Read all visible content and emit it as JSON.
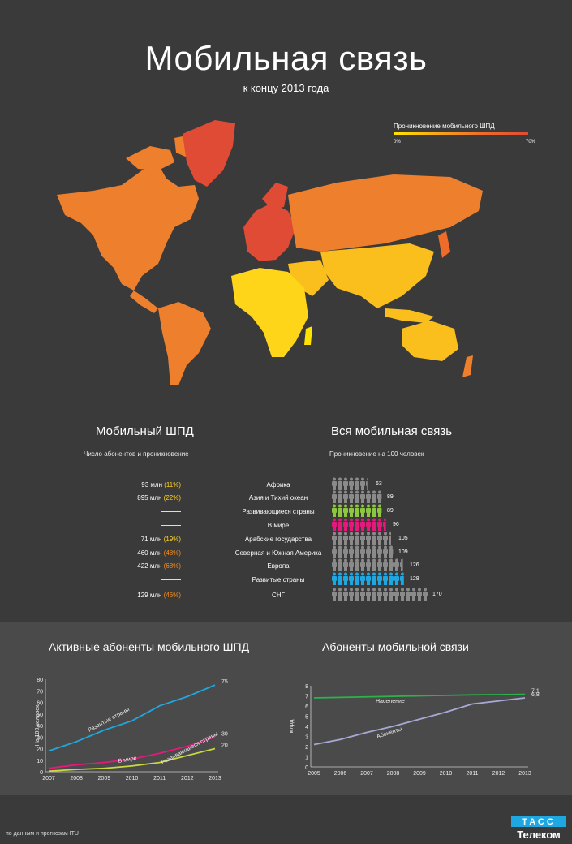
{
  "header": {
    "title": "Мобильная связь",
    "subtitle": "к концу 2013 года"
  },
  "map_legend": {
    "title": "Проникновение мобильного ШПД",
    "min": "0%",
    "max": "70%",
    "colors": [
      "#ffe400",
      "#f5a51b",
      "#ee6b2a",
      "#e04b35"
    ]
  },
  "left_section": {
    "title": "Мобильный ШПД",
    "subtitle": "Число абонентов и проникновение"
  },
  "right_section": {
    "title": "Вся мобильная связь",
    "subtitle": "Проникновение на 100 человек"
  },
  "rows": [
    {
      "abs": "93 млн",
      "pct": "(11%)",
      "pct_class": "pct-y",
      "region": "Африка",
      "value": 63,
      "color": "#8a8a8a"
    },
    {
      "abs": "895 млн",
      "pct": "(22%)",
      "pct_class": "pct-y",
      "region": "Азия и Тихий океан",
      "value": 89,
      "color": "#8a8a8a"
    },
    {
      "abs": "",
      "pct": "",
      "pct_class": "",
      "region": "Развивающиеся страны",
      "value": 89,
      "color": "#8dc63f"
    },
    {
      "abs": "",
      "pct": "",
      "pct_class": "",
      "region": "В мире",
      "value": 96,
      "color": "#e5197c"
    },
    {
      "abs": "71 млн",
      "pct": "(19%)",
      "pct_class": "pct-y",
      "region": "Арабские государства",
      "value": 105,
      "color": "#8a8a8a"
    },
    {
      "abs": "460 млн",
      "pct": "(48%)",
      "pct_class": "pct-o",
      "region": "Северная и Южная Америка",
      "value": 109,
      "color": "#8a8a8a"
    },
    {
      "abs": "422 млн",
      "pct": "(68%)",
      "pct_class": "pct-o",
      "region": "Европа",
      "value": 126,
      "color": "#8a8a8a"
    },
    {
      "abs": "",
      "pct": "",
      "pct_class": "",
      "region": "Развитые страны",
      "value": 128,
      "color": "#1ea7e1"
    },
    {
      "abs": "129 млн",
      "pct": "(46%)",
      "pct_class": "pct-o",
      "region": "СНГ",
      "value": 170,
      "color": "#8a8a8a"
    }
  ],
  "chart_data": [
    {
      "type": "line",
      "title": "Активные абоненты мобильного ШПД",
      "ylabel": "На 100 человек",
      "x": [
        "2007",
        "2008",
        "2009",
        "2010",
        "2011",
        "2012",
        "2013"
      ],
      "yticks": [
        "0",
        "10",
        "20",
        "30",
        "40",
        "50",
        "60",
        "70",
        "80"
      ],
      "ylim": [
        0,
        80
      ],
      "series": [
        {
          "name": "Развитые страны",
          "color": "#1ea7e1",
          "values": [
            18,
            26,
            36,
            44,
            57,
            65,
            75
          ],
          "end_label": "75"
        },
        {
          "name": "В мире",
          "color": "#e5197c",
          "values": [
            3,
            6,
            8,
            11,
            16,
            22,
            30
          ],
          "end_label": "30"
        },
        {
          "name": "Развивающиеся страны",
          "color": "#c8d93c",
          "values": [
            0.5,
            2,
            3,
            5,
            8,
            14,
            20
          ],
          "end_label": "20"
        }
      ]
    },
    {
      "type": "line",
      "title": "Абоненты мобильной связи",
      "ylabel": "млрд",
      "x": [
        "2005",
        "2006",
        "2007",
        "2008",
        "2009",
        "2010",
        "2011",
        "2012",
        "2013"
      ],
      "yticks": [
        "0",
        "1",
        "2",
        "3",
        "4",
        "5",
        "6",
        "7",
        "8"
      ],
      "ylim": [
        0,
        8
      ],
      "series": [
        {
          "name": "Население",
          "color": "#2bb34a",
          "values": [
            6.8,
            6.85,
            6.9,
            6.95,
            7.0,
            7.05,
            7.1,
            7.12,
            7.15
          ],
          "end_label": "7,1"
        },
        {
          "name": "Абоненты",
          "color": "#a8a8d8",
          "values": [
            2.2,
            2.7,
            3.4,
            4.0,
            4.7,
            5.4,
            6.2,
            6.5,
            6.8
          ],
          "end_label": "6,8"
        }
      ]
    }
  ],
  "footer": {
    "source": "по данным и прогнозам ITU",
    "logo_top": "ТАСС",
    "logo_bottom": "Телеком"
  }
}
